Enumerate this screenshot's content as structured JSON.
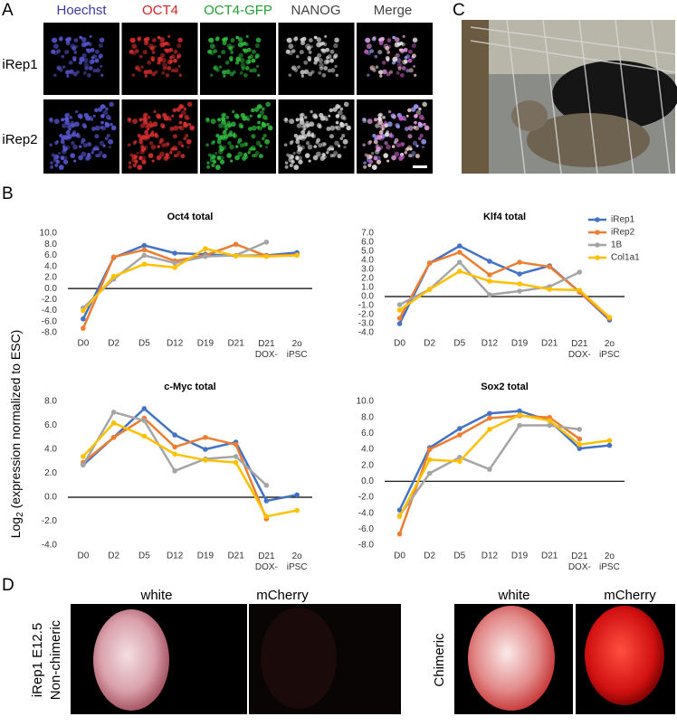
{
  "panel_labels": [
    "A",
    "B",
    "C",
    "D"
  ],
  "panel_a": {
    "columns": [
      "Hoechst",
      "OCT4",
      "OCT4-GFP",
      "NANOG",
      "Merge"
    ],
    "rows": [
      "iRep1",
      "iRep2"
    ]
  },
  "y_label": {
    "base": "Log",
    "sub": "2",
    "rest": "(expression normalized to ESC)"
  },
  "chart_data": [
    {
      "type": "line",
      "title": "Oct4 total",
      "categories": [
        "D0",
        "D2",
        "D5",
        "D12",
        "D19",
        "D21",
        "D21 DOX-",
        "2o iPSC"
      ],
      "ylim": [
        -8,
        10
      ],
      "yticks": [
        {
          "value": -8,
          "label": "-8.0"
        },
        {
          "value": -6,
          "label": "-6.0"
        },
        {
          "value": -4,
          "label": "-4.0"
        },
        {
          "value": -2,
          "label": "-2.0"
        },
        {
          "value": 0,
          "label": "0.0"
        },
        {
          "value": 2,
          "label": "2.0"
        },
        {
          "value": 4,
          "label": "4.0"
        },
        {
          "value": 6,
          "label": "6.0"
        },
        {
          "value": 8,
          "label": "8.0"
        },
        {
          "value": 10,
          "label": "10.0"
        }
      ],
      "series": [
        {
          "color": "#4472c4",
          "values": [
            -5.5,
            5.6,
            7.8,
            6.4,
            6.2,
            5.9,
            6.0,
            6.5
          ]
        },
        {
          "color": "#ed7d31",
          "values": [
            -7.2,
            5.7,
            7.0,
            5.0,
            6.0,
            8.0,
            5.9,
            6.1
          ]
        },
        {
          "color": "#a5a5a5",
          "values": [
            -3.5,
            1.7,
            6.0,
            4.6,
            5.8,
            6.0,
            8.4,
            null
          ]
        },
        {
          "color": "#ffc000",
          "values": [
            -4.0,
            2.2,
            4.4,
            3.8,
            7.2,
            5.9,
            5.8,
            6.0
          ]
        }
      ]
    },
    {
      "type": "line",
      "title": "Klf4 total",
      "legend": "right",
      "categories": [
        "D0",
        "D2",
        "D5",
        "D12",
        "D19",
        "D21",
        "D21 DOX-",
        "2o iPSC"
      ],
      "ylim": [
        -4,
        7
      ],
      "yticks": [
        {
          "value": -4,
          "label": "-4.0"
        },
        {
          "value": -3,
          "label": "-3.0"
        },
        {
          "value": -2,
          "label": "-2.0"
        },
        {
          "value": -1,
          "label": "-1.0"
        },
        {
          "value": 0,
          "label": "0.0"
        },
        {
          "value": 1,
          "label": "1.0"
        },
        {
          "value": 2,
          "label": "2.0"
        },
        {
          "value": 3,
          "label": "3.0"
        },
        {
          "value": 4,
          "label": "4.0"
        },
        {
          "value": 5,
          "label": "5.0"
        },
        {
          "value": 6,
          "label": "6.0"
        },
        {
          "value": 7,
          "label": "7.0"
        }
      ],
      "series": [
        {
          "name": "iRep1",
          "color": "#4472c4",
          "values": [
            -3.0,
            3.7,
            5.6,
            3.9,
            2.5,
            3.4,
            0.5,
            -2.6
          ]
        },
        {
          "name": "iRep2",
          "color": "#ed7d31",
          "values": [
            -2.4,
            3.7,
            4.9,
            2.4,
            3.8,
            3.3,
            0.5,
            -2.4
          ]
        },
        {
          "name": "1B",
          "color": "#a5a5a5",
          "values": [
            -0.9,
            0.8,
            3.8,
            0.2,
            0.6,
            1.1,
            2.7,
            null
          ]
        },
        {
          "name": "Col1a1",
          "color": "#ffc000",
          "values": [
            -1.5,
            0.8,
            2.8,
            1.7,
            1.4,
            0.8,
            0.7,
            -2.3
          ]
        }
      ]
    },
    {
      "type": "line",
      "title": "c-Myc total",
      "categories": [
        "D0",
        "D2",
        "D5",
        "D12",
        "D19",
        "D21",
        "D21 DOX-",
        "2o iPSC"
      ],
      "ylim": [
        -4,
        8
      ],
      "yticks": [
        {
          "value": -4,
          "label": "-4.0"
        },
        {
          "value": -2,
          "label": "-2.0"
        },
        {
          "value": 0,
          "label": "0.0"
        },
        {
          "value": 2,
          "label": "2.0"
        },
        {
          "value": 4,
          "label": "4.0"
        },
        {
          "value": 6,
          "label": "6.0"
        },
        {
          "value": 8,
          "label": "8.0"
        }
      ],
      "series": [
        {
          "color": "#4472c4",
          "values": [
            2.7,
            5.0,
            7.4,
            5.2,
            4.0,
            4.6,
            -0.3,
            0.2
          ]
        },
        {
          "color": "#ed7d31",
          "values": [
            2.9,
            5.0,
            6.6,
            4.2,
            5.0,
            4.4,
            -1.8,
            null
          ]
        },
        {
          "color": "#a5a5a5",
          "values": [
            2.7,
            7.1,
            6.4,
            2.2,
            3.2,
            3.4,
            1.0,
            null
          ]
        },
        {
          "color": "#ffc000",
          "values": [
            3.4,
            6.2,
            5.1,
            3.6,
            3.1,
            2.9,
            -1.6,
            -1.1
          ]
        }
      ]
    },
    {
      "type": "line",
      "title": "Sox2 total",
      "categories": [
        "D0",
        "D2",
        "D5",
        "D12",
        "D19",
        "D21",
        "D21 DOX-",
        "2o iPSC"
      ],
      "ylim": [
        -8,
        10
      ],
      "yticks": [
        {
          "value": -8,
          "label": "-8.0"
        },
        {
          "value": -6,
          "label": "-6.0"
        },
        {
          "value": -4,
          "label": "-4.0"
        },
        {
          "value": -2,
          "label": "-2.0"
        },
        {
          "value": 0,
          "label": "0.0"
        },
        {
          "value": 2,
          "label": "2.0"
        },
        {
          "value": 4,
          "label": "4.0"
        },
        {
          "value": 6,
          "label": "6.0"
        },
        {
          "value": 8,
          "label": "8.0"
        },
        {
          "value": 10,
          "label": "10.0"
        }
      ],
      "series": [
        {
          "color": "#4472c4",
          "values": [
            -3.6,
            4.2,
            6.6,
            8.5,
            8.8,
            7.6,
            4.1,
            4.5
          ]
        },
        {
          "color": "#ed7d31",
          "values": [
            -6.6,
            4.0,
            5.8,
            7.9,
            8.2,
            8.0,
            5.3,
            null
          ]
        },
        {
          "color": "#a5a5a5",
          "values": [
            -4.3,
            1.0,
            3.0,
            1.5,
            7.0,
            7.0,
            6.5,
            null
          ]
        },
        {
          "color": "#ffc000",
          "values": [
            -4.4,
            2.7,
            2.5,
            6.5,
            8.3,
            7.6,
            4.6,
            5.1
          ]
        }
      ]
    }
  ],
  "panel_d": {
    "headers": [
      "white",
      "mCherry",
      "white",
      "mCherry"
    ],
    "side_labels": [
      "iRep1 E12.5",
      "Non-chimeric",
      "Chimeric"
    ]
  }
}
